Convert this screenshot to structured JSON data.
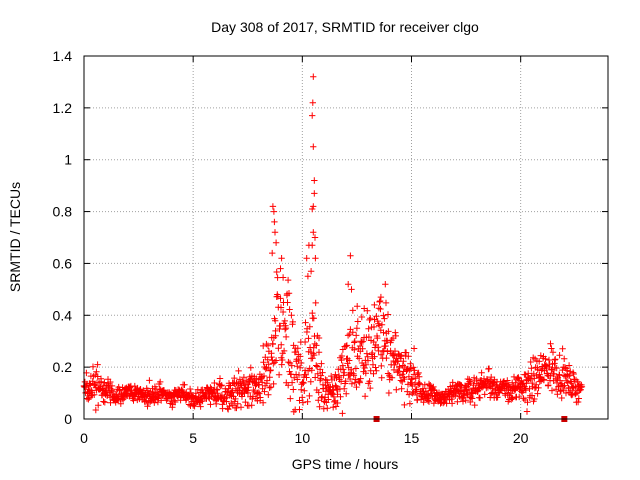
{
  "chart_data": {
    "type": "scatter",
    "title": "Day 308 of 2017, SRMTID for receiver clgo",
    "xlabel": "GPS time / hours",
    "ylabel": "SRMTID / TECUs",
    "xlim": [
      0,
      24
    ],
    "ylim": [
      0,
      1.4
    ],
    "x_ticks": [
      0,
      5,
      10,
      15,
      20
    ],
    "x_tick_labels": [
      "0",
      "5",
      "10",
      "15",
      "20"
    ],
    "y_ticks": [
      0,
      0.2,
      0.4,
      0.6,
      0.8,
      1.0,
      1.2,
      1.4
    ],
    "y_tick_labels": [
      "0",
      "0.2",
      "0.4",
      "0.6",
      "0.8",
      "1",
      "1.2",
      "1.4"
    ],
    "grid": true,
    "marker": "plus",
    "color": "#ff0000",
    "gap_marker_color": "#cc0000",
    "gap_markers_x": [
      13.4,
      22.0
    ],
    "series": [
      {
        "name": "SRMTID",
        "color": "#ff0000",
        "anchor_x": [
          0,
          0.5,
          1,
          1.5,
          2,
          2.5,
          3,
          3.5,
          4,
          4.5,
          5,
          5.5,
          6,
          6.5,
          7,
          7.5,
          8,
          8.5,
          8.8,
          9,
          9.3,
          9.6,
          10,
          10.3,
          10.6,
          10.9,
          11.2,
          11.6,
          12,
          12.4,
          12.8,
          13.2,
          13.6,
          14,
          14.5,
          15,
          15.5,
          16,
          16.5,
          17,
          17.5,
          18,
          18.5,
          19,
          19.5,
          20,
          20.5,
          21,
          21.5,
          22,
          22.5,
          22.8
        ],
        "anchor_y": [
          0.12,
          0.13,
          0.11,
          0.09,
          0.1,
          0.1,
          0.09,
          0.1,
          0.08,
          0.1,
          0.08,
          0.09,
          0.1,
          0.1,
          0.1,
          0.12,
          0.12,
          0.2,
          0.3,
          0.32,
          0.28,
          0.22,
          0.18,
          0.24,
          0.26,
          0.12,
          0.1,
          0.13,
          0.22,
          0.24,
          0.26,
          0.28,
          0.3,
          0.26,
          0.2,
          0.18,
          0.1,
          0.09,
          0.08,
          0.1,
          0.11,
          0.12,
          0.14,
          0.12,
          0.11,
          0.12,
          0.14,
          0.18,
          0.2,
          0.16,
          0.12,
          0.12
        ],
        "anchor_spread": [
          0.04,
          0.06,
          0.04,
          0.03,
          0.03,
          0.03,
          0.04,
          0.04,
          0.03,
          0.03,
          0.03,
          0.03,
          0.04,
          0.05,
          0.06,
          0.05,
          0.06,
          0.12,
          0.2,
          0.25,
          0.2,
          0.15,
          0.12,
          0.25,
          0.3,
          0.06,
          0.05,
          0.05,
          0.14,
          0.15,
          0.12,
          0.15,
          0.16,
          0.14,
          0.1,
          0.1,
          0.04,
          0.04,
          0.03,
          0.04,
          0.04,
          0.04,
          0.05,
          0.04,
          0.04,
          0.05,
          0.07,
          0.08,
          0.09,
          0.06,
          0.04,
          0.04
        ],
        "n_points": 1400,
        "spikes": [
          {
            "x": 8.65,
            "y": 0.82
          },
          {
            "x": 8.7,
            "y": 0.8
          },
          {
            "x": 8.72,
            "y": 0.76
          },
          {
            "x": 8.75,
            "y": 0.72
          },
          {
            "x": 8.8,
            "y": 0.68
          },
          {
            "x": 8.62,
            "y": 0.64
          },
          {
            "x": 9.05,
            "y": 0.62
          },
          {
            "x": 9.0,
            "y": 0.58
          },
          {
            "x": 10.5,
            "y": 1.32
          },
          {
            "x": 10.48,
            "y": 1.22
          },
          {
            "x": 10.45,
            "y": 1.17
          },
          {
            "x": 10.5,
            "y": 1.05
          },
          {
            "x": 10.55,
            "y": 0.92
          },
          {
            "x": 10.55,
            "y": 0.87
          },
          {
            "x": 10.5,
            "y": 0.82
          },
          {
            "x": 10.45,
            "y": 0.81
          },
          {
            "x": 10.3,
            "y": 0.67
          },
          {
            "x": 10.45,
            "y": 0.67
          },
          {
            "x": 10.5,
            "y": 0.72
          },
          {
            "x": 10.58,
            "y": 0.7
          },
          {
            "x": 10.6,
            "y": 0.62
          },
          {
            "x": 10.2,
            "y": 0.62
          },
          {
            "x": 10.4,
            "y": 0.57
          },
          {
            "x": 12.2,
            "y": 0.63
          },
          {
            "x": 12.1,
            "y": 0.52
          },
          {
            "x": 12.25,
            "y": 0.5
          },
          {
            "x": 13.8,
            "y": 0.52
          },
          {
            "x": 13.6,
            "y": 0.47
          },
          {
            "x": 13.3,
            "y": 0.44
          }
        ]
      }
    ]
  }
}
